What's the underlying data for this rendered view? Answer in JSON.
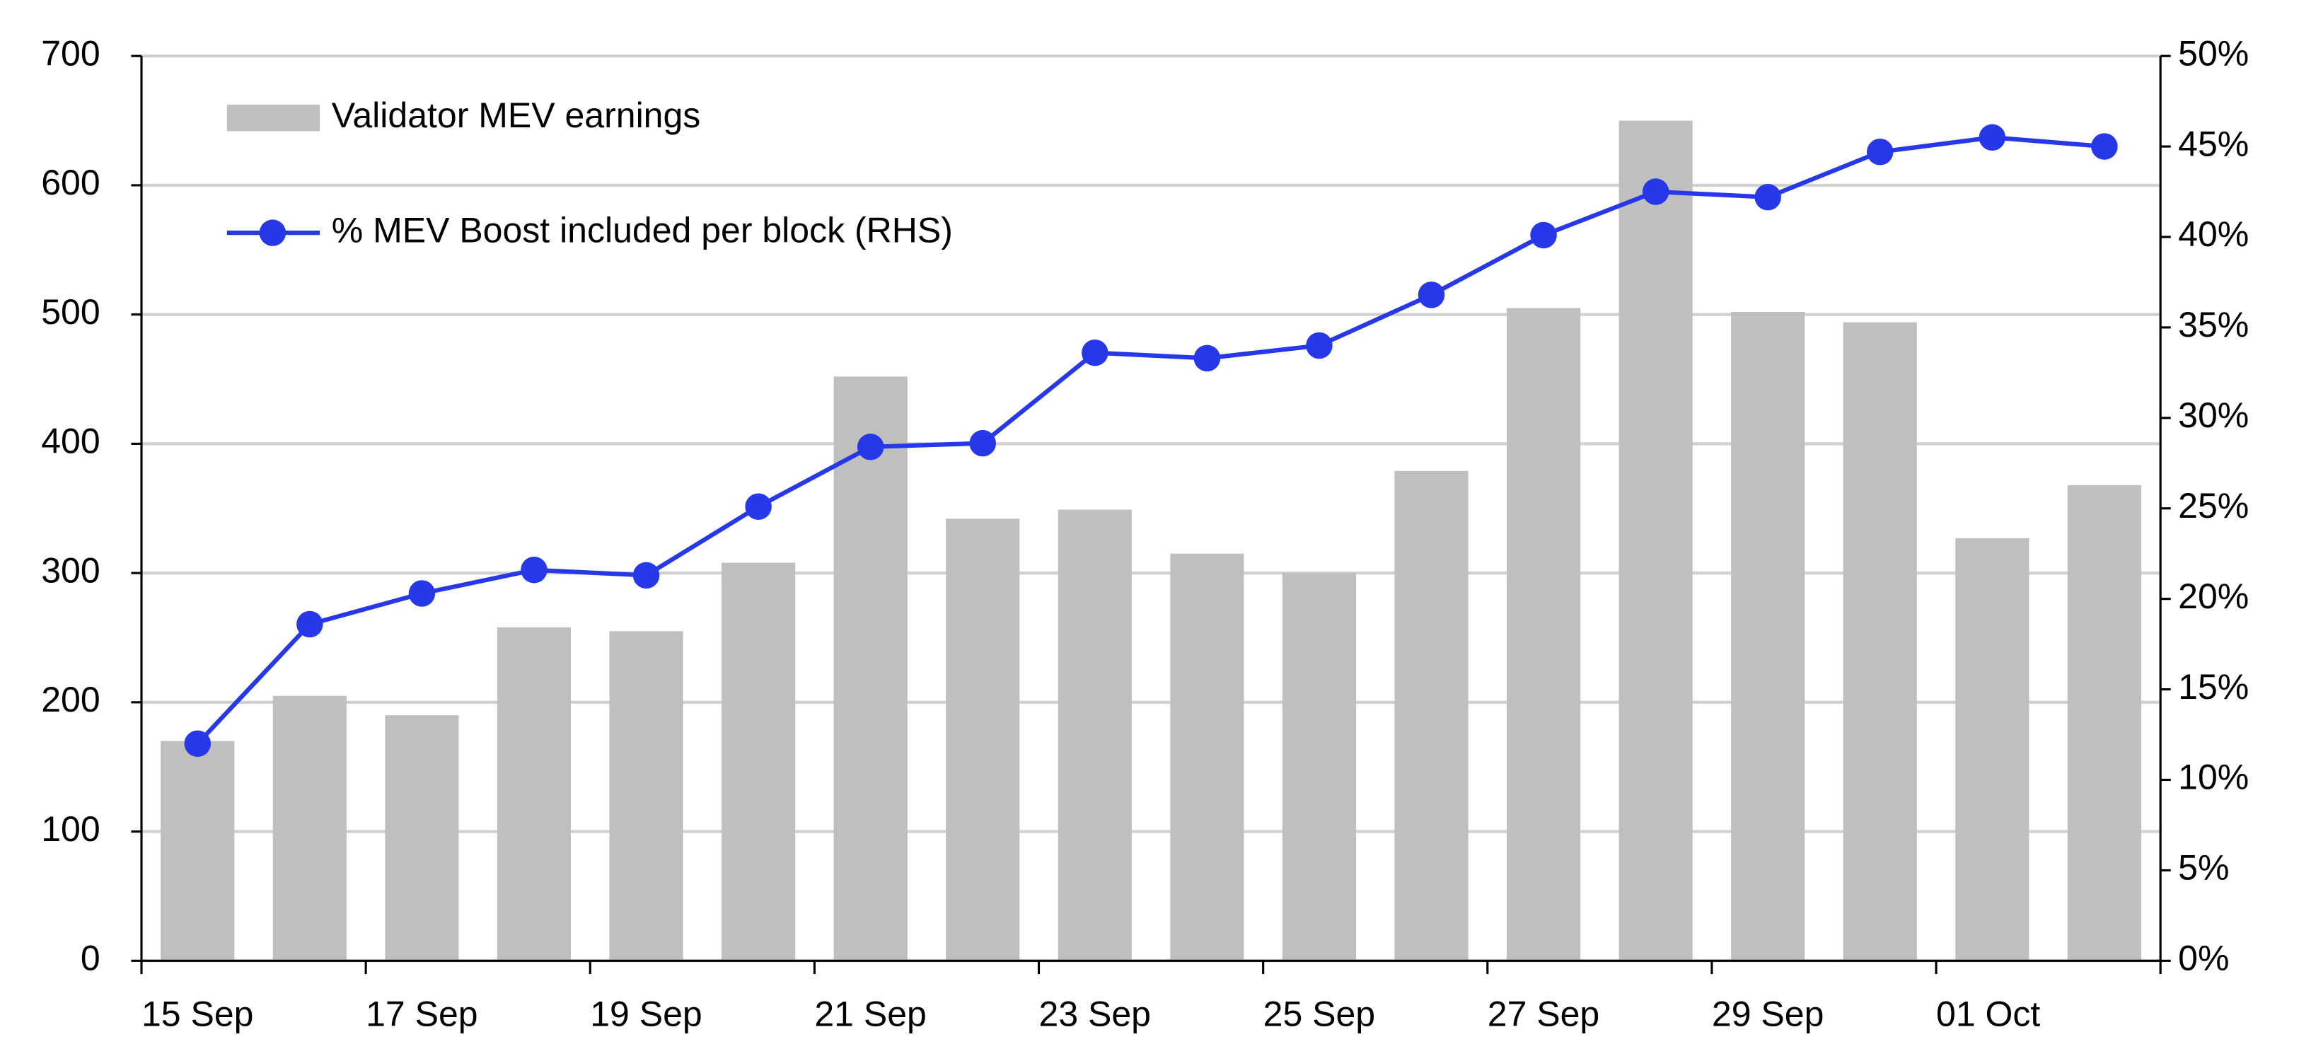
{
  "chart_data": {
    "type": "bar_line",
    "categories": [
      "15 Sep",
      null,
      "17 Sep",
      null,
      "19 Sep",
      null,
      "21 Sep",
      null,
      "23 Sep",
      null,
      "25 Sep",
      null,
      "27 Sep",
      null,
      "29 Sep",
      null,
      "01 Oct",
      null
    ],
    "series": [
      {
        "name": "Validator MEV earnings",
        "type": "bar",
        "color": "#bfbfbf",
        "values": [
          170,
          205,
          190,
          258,
          255,
          308,
          452,
          342,
          349,
          315,
          300,
          379,
          505,
          650,
          502,
          494,
          327,
          368
        ]
      },
      {
        "name": "% MEV Boost included per block (RHS)",
        "type": "line",
        "axis": "y2",
        "color": "#2638e8",
        "values": [
          12,
          18.6,
          20.3,
          21.6,
          21.3,
          25.1,
          28.4,
          28.6,
          33.6,
          33.3,
          34.0,
          36.8,
          40.1,
          42.5,
          42.2,
          44.7,
          45.5,
          45.0
        ]
      }
    ],
    "ylim": [
      0,
      700
    ],
    "yticks": [
      0,
      100,
      200,
      300,
      400,
      500,
      600,
      700
    ],
    "y2lim": [
      0,
      50
    ],
    "y2ticks": [
      {
        "value": 0,
        "label": "0%"
      },
      {
        "value": 5,
        "label": "5%"
      },
      {
        "value": 10,
        "label": "10%"
      },
      {
        "value": 15,
        "label": "15%"
      },
      {
        "value": 20,
        "label": "20%"
      },
      {
        "value": 25,
        "label": "25%"
      },
      {
        "value": 30,
        "label": "30%"
      },
      {
        "value": 35,
        "label": "35%"
      },
      {
        "value": 40,
        "label": "40%"
      },
      {
        "value": 45,
        "label": "45%"
      },
      {
        "value": 50,
        "label": "50%"
      }
    ],
    "grid": true,
    "legend": "upper left"
  }
}
